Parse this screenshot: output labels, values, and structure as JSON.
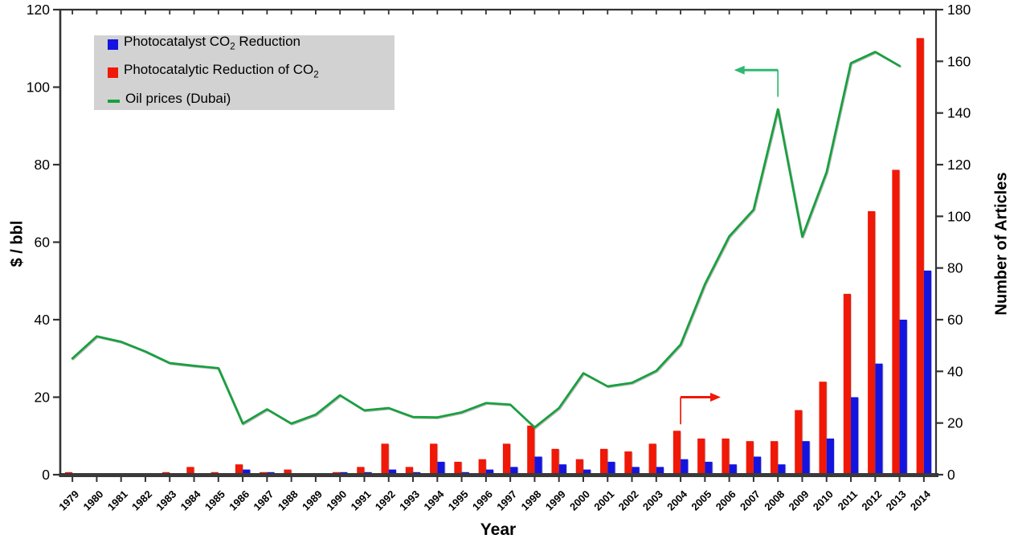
{
  "figure": {
    "background": "#ffffff"
  },
  "legend": {
    "position": "upper-left",
    "items": [
      {
        "swatch": "blue-square",
        "color": "#1414e0",
        "pre": "Photocatalyst CO",
        "sub": "2",
        "post": " Reduction"
      },
      {
        "swatch": "red-square",
        "color": "#f01806",
        "pre": "Photocatalytic Reduction of CO",
        "sub": "2",
        "post": ""
      },
      {
        "swatch": "green-dash",
        "color": "#17a03e",
        "pre": "Oil prices (Dubai)",
        "sub": "",
        "post": ""
      }
    ]
  },
  "chart_data": {
    "type": "bar",
    "subtype": "dual-axis-combo-bar-line",
    "x_label": "Year",
    "years": [
      1979,
      1980,
      1981,
      1982,
      1983,
      1984,
      1985,
      1986,
      1987,
      1988,
      1989,
      1990,
      1991,
      1992,
      1993,
      1994,
      1995,
      1996,
      1997,
      1998,
      1999,
      2000,
      2001,
      2002,
      2003,
      2004,
      2005,
      2006,
      2007,
      2008,
      2009,
      2010,
      2011,
      2012,
      2013,
      2014
    ],
    "series": [
      {
        "name": "Photocatalyst CO2 Reduction",
        "type": "bar",
        "axis": "right",
        "color": "#1414e0",
        "values": [
          0,
          0,
          0,
          0,
          0,
          0,
          0,
          2,
          1,
          0,
          0,
          1,
          1,
          2,
          1,
          5,
          1,
          2,
          3,
          7,
          4,
          2,
          5,
          3,
          3,
          6,
          5,
          4,
          7,
          4,
          13,
          14,
          30,
          43,
          60,
          79
        ]
      },
      {
        "name": "Photocatalytic Reduction of CO2",
        "type": "bar",
        "axis": "right",
        "color": "#f01806",
        "values": [
          1,
          0,
          0,
          0,
          1,
          3,
          1,
          4,
          1,
          2,
          0,
          1,
          3,
          12,
          3,
          12,
          5,
          6,
          12,
          19,
          10,
          6,
          10,
          9,
          12,
          17,
          14,
          14,
          13,
          13,
          25,
          36,
          70,
          102,
          118,
          169
        ]
      },
      {
        "name": "Oil prices (Dubai)",
        "type": "line",
        "axis": "left",
        "color": "#17a03e",
        "values": [
          30.0,
          35.7,
          34.3,
          31.8,
          28.8,
          28.1,
          27.5,
          13.2,
          16.9,
          13.2,
          15.5,
          20.5,
          16.6,
          17.2,
          14.9,
          14.8,
          16.1,
          18.5,
          18.1,
          12.2,
          17.2,
          26.2,
          22.8,
          23.7,
          26.8,
          33.6,
          49.2,
          61.5,
          68.4,
          94.3,
          61.4,
          78.1,
          106.2,
          109.1,
          105.5,
          null
        ]
      }
    ],
    "left_axis": {
      "label": "$ / bbl",
      "min": 0,
      "max": 120,
      "step": 20,
      "ticks": [
        0,
        20,
        40,
        60,
        80,
        100,
        120
      ]
    },
    "right_axis": {
      "label": "Number of Articles",
      "min": 0,
      "max": 180,
      "step": 20,
      "ticks": [
        0,
        20,
        40,
        60,
        80,
        100,
        120,
        140,
        160,
        180
      ]
    },
    "grid": false,
    "legend_position": "upper-left",
    "annotations": [
      {
        "name": "left-axis-pointer-arrow",
        "color": "#2eb873",
        "axis": "left",
        "year": 2008,
        "value_from": 97.5,
        "value_to": 104.4,
        "direction": "left",
        "span_years": 1.8
      },
      {
        "name": "right-axis-pointer-arrow",
        "color": "#f01806",
        "axis": "right",
        "year": 2004,
        "value_from": 19.5,
        "value_to": 30.0,
        "direction": "right",
        "span_years": 1.65
      }
    ]
  }
}
